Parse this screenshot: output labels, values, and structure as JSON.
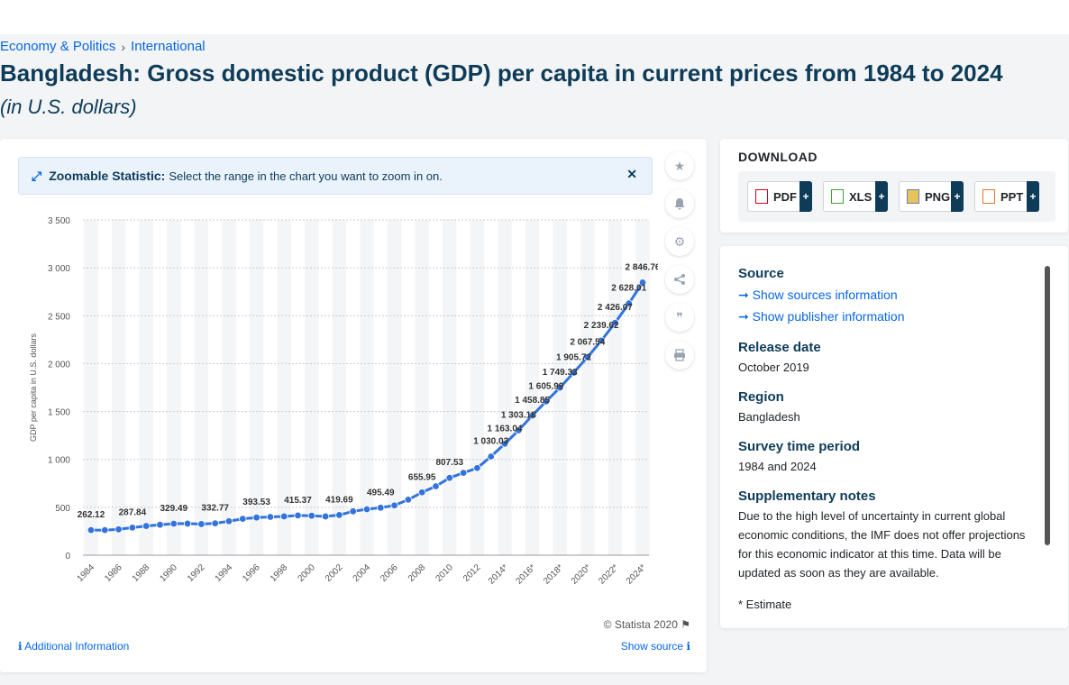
{
  "breadcrumb": {
    "item1": "Economy & Politics",
    "item2": "International",
    "sep": "›"
  },
  "title": "Bangladesh: Gross domestic product (GDP) per capita in current prices from 1984 to 2024",
  "subtitle": "(in U.S. dollars)",
  "zoom": {
    "label": "Zoomable Statistic:",
    "text": "Select the range in the chart you want to zoom in on.",
    "close": "✕"
  },
  "toolbar": {
    "icons": [
      "star-icon",
      "bell-icon",
      "gear-icon",
      "share-icon",
      "quote-icon",
      "print-icon"
    ]
  },
  "footer": {
    "copyright": "© Statista 2020",
    "additional": "Additional Information",
    "show_source": "Show source"
  },
  "download": {
    "title": "DOWNLOAD",
    "buttons": [
      "PDF",
      "XLS",
      "PNG",
      "PPT"
    ],
    "plus": "+"
  },
  "info": {
    "source_head": "Source",
    "show_sources": "Show sources information",
    "show_publisher": "Show publisher information",
    "release_head": "Release date",
    "release_val": "October 2019",
    "region_head": "Region",
    "region_val": "Bangladesh",
    "survey_head": "Survey time period",
    "survey_val": "1984 and 2024",
    "notes_head": "Supplementary notes",
    "notes_val": "Due to the high level of uncertainty in current global economic conditions, the IMF does not offer projections for this economic indicator at this time. Data will be updated as soon as they are available.",
    "estimate": "* Estimate"
  },
  "colors": {
    "line": "#3273dc",
    "accent": "#0666e5",
    "title": "#0e3c58"
  },
  "chart_data": {
    "type": "line",
    "ylabel": "GDP per capita in U.S. dollars",
    "ylim": [
      0,
      3500
    ],
    "yticks": [
      0,
      500,
      1000,
      1500,
      2000,
      2500,
      3000,
      3500
    ],
    "ytick_labels": [
      "0",
      "500",
      "1 000",
      "1 500",
      "2 000",
      "2 500",
      "3 000",
      "3 500"
    ],
    "grid": true,
    "x": [
      1984,
      1985,
      1986,
      1987,
      1988,
      1989,
      1990,
      1991,
      1992,
      1993,
      1994,
      1995,
      1996,
      1997,
      1998,
      1999,
      2000,
      2001,
      2002,
      2003,
      2004,
      2005,
      2006,
      2007,
      2008,
      2009,
      2010,
      2011,
      2012,
      2013,
      2014,
      2015,
      2016,
      2017,
      2018,
      2019,
      2020,
      2021,
      2022,
      2023,
      2024
    ],
    "xtick_labels": [
      "1984",
      "1986",
      "1988",
      "1990",
      "1992",
      "1994",
      "1996",
      "1998",
      "2000",
      "2002",
      "2004",
      "2006",
      "2008",
      "2010",
      "2012",
      "2014*",
      "2016*",
      "2018*",
      "2020*",
      "2022*",
      "2024*"
    ],
    "values": [
      262.12,
      262,
      270,
      287.84,
      305,
      318,
      329.49,
      330,
      325,
      332.77,
      355,
      380,
      393.53,
      400,
      405,
      415.37,
      412,
      405,
      419.69,
      458,
      480,
      495.49,
      520,
      580,
      655.95,
      720,
      807.53,
      860,
      910,
      1030.03,
      1163.04,
      1303.18,
      1458.85,
      1605.99,
      1749.33,
      1905.72,
      2067.54,
      2239.62,
      2426.07,
      2628.01,
      2846.76
    ],
    "labels": {
      "1984": "262.12",
      "1987": "287.84",
      "1990": "329.49",
      "1993": "332.77",
      "1996": "393.53",
      "1999": "415.37",
      "2002": "419.69",
      "2005": "495.49",
      "2008": "655.95",
      "2010": "807.53",
      "2013": "1 030.03",
      "2014": "1 163.04",
      "2015": "1 303.18",
      "2016": "1 458.85",
      "2017": "1 605.99",
      "2018": "1 749.33",
      "2019": "1 905.72",
      "2020": "2 067.54",
      "2021": "2 239.62",
      "2022": "2 426.07",
      "2023": "2 628.01",
      "2024": "2 846.76"
    }
  }
}
